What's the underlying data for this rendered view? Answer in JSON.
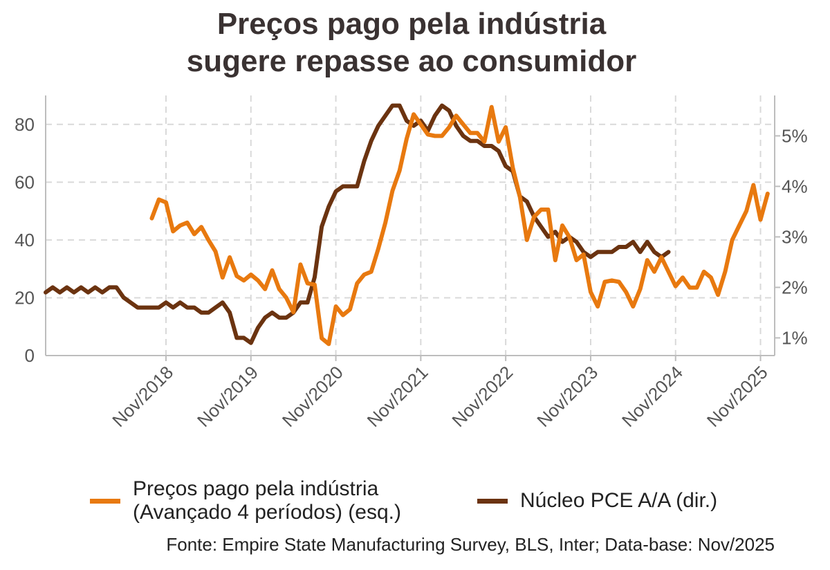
{
  "title_lines": [
    "Preços pago pela indústria",
    "sugere repasse ao consumidor"
  ],
  "source": "Fonte: Empire State Manufacturing Survey, BLS, Inter; Data-base: Nov/2025",
  "colors": {
    "orange": "#e8790f",
    "brown": "#6b3310",
    "grid": "#d9d9d9",
    "axis": "#bdbdbd"
  },
  "chart_data": {
    "type": "line",
    "x_unit": "month",
    "x_tick_labels": [
      "Nov/2018",
      "Nov/2019",
      "Nov/2020",
      "Nov/2021",
      "Nov/2022",
      "Nov/2023",
      "Nov/2024",
      "Nov/2025"
    ],
    "x_ticks": [
      "2018-11",
      "2019-11",
      "2020-11",
      "2021-11",
      "2022-11",
      "2023-11",
      "2024-11",
      "2025-11"
    ],
    "xlim": [
      "2017-06",
      "2026-01"
    ],
    "y_left": {
      "ylim": [
        0,
        90
      ],
      "ticks": [
        0,
        20,
        40,
        60,
        80
      ],
      "tick_labels": [
        "0",
        "20",
        "40",
        "60",
        "80"
      ]
    },
    "y_right": {
      "ylim": [
        0.65,
        5.8
      ],
      "ticks": [
        1,
        2,
        3,
        4,
        5
      ],
      "tick_labels": [
        "1%",
        "2%",
        "3%",
        "4%",
        "5%"
      ]
    },
    "grid": true,
    "legend_position": "bottom",
    "series": [
      {
        "name": "Preços pago pela indústria\n(Avançado 4 períodos) (esq.)",
        "axis": "left",
        "color": "#e8790f",
        "x_start": "2018-09",
        "values": [
          47.5,
          54,
          53,
          43,
          45,
          46,
          42,
          44.5,
          40,
          36,
          27,
          34,
          27.5,
          26,
          28,
          26,
          23,
          29.5,
          23,
          20,
          15,
          31.5,
          25,
          24.5,
          6,
          4,
          17,
          14,
          16,
          25,
          28,
          29,
          37,
          46,
          57,
          64,
          75,
          83.5,
          80,
          76.5,
          76,
          76,
          79,
          83,
          80,
          77,
          77,
          74,
          86,
          74,
          79,
          65,
          55,
          40,
          48,
          50.5,
          50.5,
          33,
          45,
          41,
          33,
          35,
          22,
          17,
          25.5,
          26,
          25.5,
          22,
          17,
          23,
          33,
          29,
          34,
          29,
          24,
          27,
          23.5,
          23.5,
          29,
          27,
          21,
          29,
          40,
          45,
          50,
          59,
          47,
          56
        ]
      },
      {
        "name": "Núcleo PCE A/A (dir.)",
        "axis": "right",
        "color": "#6b3310",
        "x_start": "2017-06",
        "values": [
          1.9,
          2.0,
          1.9,
          2.0,
          1.9,
          2.0,
          1.9,
          2.0,
          1.9,
          2.0,
          2.0,
          1.8,
          1.7,
          1.6,
          1.6,
          1.6,
          1.6,
          1.7,
          1.6,
          1.7,
          1.6,
          1.6,
          1.5,
          1.5,
          1.6,
          1.7,
          1.5,
          1.0,
          1.0,
          0.9,
          1.2,
          1.4,
          1.5,
          1.4,
          1.4,
          1.5,
          1.7,
          1.7,
          2.2,
          3.2,
          3.6,
          3.9,
          4.0,
          4.0,
          4.0,
          4.5,
          4.9,
          5.2,
          5.4,
          5.6,
          5.6,
          5.3,
          5.2,
          5.3,
          5.1,
          5.4,
          5.6,
          5.5,
          5.2,
          5.0,
          4.9,
          4.9,
          4.8,
          4.8,
          4.7,
          4.4,
          4.3,
          3.8,
          3.7,
          3.4,
          3.2,
          3.0,
          3.1,
          2.9,
          3.0,
          2.9,
          2.7,
          2.6,
          2.7,
          2.7,
          2.7,
          2.8,
          2.8,
          2.9,
          2.7,
          2.9,
          2.7,
          2.6,
          2.7
        ]
      }
    ]
  }
}
